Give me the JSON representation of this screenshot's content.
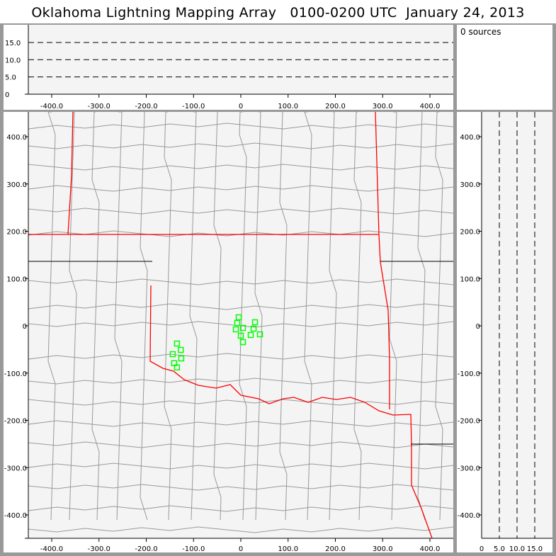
{
  "title": "Oklahoma Lightning Mapping Array   0100-0200 UTC  January 24, 2013",
  "sources_label": "0 sources",
  "colors": {
    "plot_bg": "#f4f4f4",
    "state_border": "#ff0000",
    "county_line": "#999999",
    "station": "#00ff00",
    "frame": "#999999"
  },
  "x_ticks": [
    "-400.0",
    "-300.0",
    "-200.0",
    "-100.0",
    "0",
    "100.0",
    "200.0",
    "300.0",
    "400.0"
  ],
  "y_ticks": [
    "400.0",
    "300.0",
    "200.0",
    "100.0",
    "0",
    "-100.0",
    "-200.0",
    "-300.0",
    "-400.0"
  ],
  "alt_ticks": [
    "0",
    "5.0",
    "10.0",
    "15.0"
  ],
  "chart_data": {
    "type": "scatter",
    "xlim": [
      -450,
      450
    ],
    "ylim": [
      -450,
      450
    ],
    "alt_lim": [
      0,
      20
    ],
    "alt_gridlines": [
      5,
      10,
      15
    ],
    "sources": [],
    "stations_km": [
      [
        -4.5,
        18
      ],
      [
        -7.5,
        6
      ],
      [
        30,
        7.5
      ],
      [
        -10.5,
        -7.5
      ],
      [
        4.5,
        -4.5
      ],
      [
        27,
        -6
      ],
      [
        0,
        -21
      ],
      [
        21,
        -19.5
      ],
      [
        40.5,
        -18
      ],
      [
        4.5,
        -34.5
      ],
      [
        -135,
        -37.5
      ],
      [
        -127,
        -51
      ],
      [
        -144,
        -60
      ],
      [
        -126,
        -69
      ],
      [
        -141,
        -79
      ],
      [
        -135,
        -88
      ]
    ]
  }
}
